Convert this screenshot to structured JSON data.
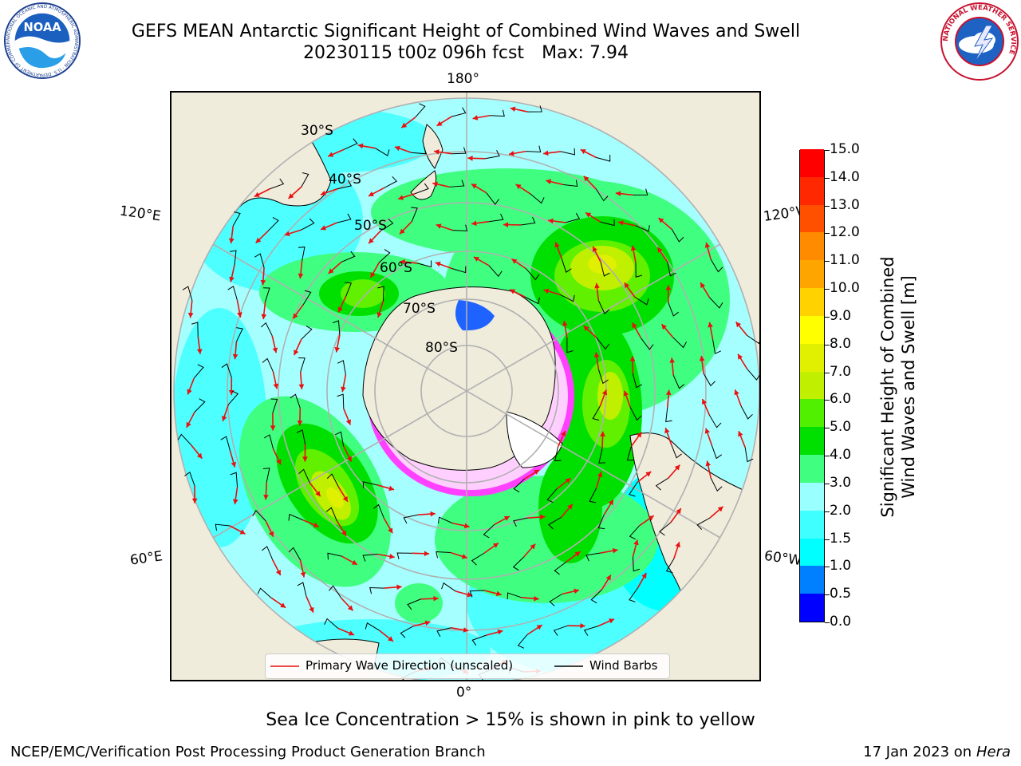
{
  "header": {
    "title_line1": "GEFS MEAN Antarctic Significant Height of Combined Wind Waves and Swell",
    "run": "20230115 t00z 096h fcst",
    "max": "Max: 7.94"
  },
  "logos": {
    "noaa_text": "NOAA",
    "noaa_ring": "NATIONAL OCEANIC AND ATMOSPHERIC ADMINISTRATION · U.S. DEPARTMENT OF COMMERCE",
    "nws_ring": "NATIONAL WEATHER SERVICE"
  },
  "map": {
    "projection": "south-polar-stereographic",
    "longitude_labels": {
      "top": "180°",
      "bottom": "0°",
      "upper_left": "120°E",
      "upper_right": "120°W",
      "lower_left": "60°E",
      "lower_right": "60°W"
    },
    "latitude_labels": [
      "30°S",
      "40°S",
      "50°S",
      "60°S",
      "70°S",
      "80°S"
    ],
    "grid": true,
    "colors": {
      "land": "#efecdc",
      "ocean_low": "#a6ffff",
      "ice": "#ff40ff",
      "vector": "#e81010",
      "barb": "#000000"
    }
  },
  "legend": {
    "primary_wave": "Primary Wave Direction (unscaled)",
    "wind_barbs": "Wind Barbs"
  },
  "colorbar": {
    "label_line1": "Significant Height of Combined",
    "label_line2": "Wind Waves and Swell [m]",
    "ticks": [
      "0.0",
      "0.5",
      "1.0",
      "1.5",
      "2.0",
      "3.0",
      "4.0",
      "5.0",
      "6.0",
      "7.0",
      "8.0",
      "9.0",
      "10.0",
      "11.0",
      "12.0",
      "13.0",
      "14.0",
      "15.0"
    ],
    "colors": [
      "#0000ff",
      "#0080ff",
      "#00ffff",
      "#40ffff",
      "#99ffff",
      "#40ff80",
      "#00e000",
      "#50f000",
      "#c0f000",
      "#e0f000",
      "#ffff00",
      "#ffd200",
      "#ffa500",
      "#ff8c00",
      "#ff5000",
      "#ff2800",
      "#ff0000"
    ]
  },
  "annotation": "Sea Ice Concentration > 15% is shown in pink to yellow",
  "footer": {
    "left": "NCEP/EMC/Verification Post Processing Product Generation Branch",
    "date": "17 Jan 2023 on",
    "host": "Hera"
  }
}
